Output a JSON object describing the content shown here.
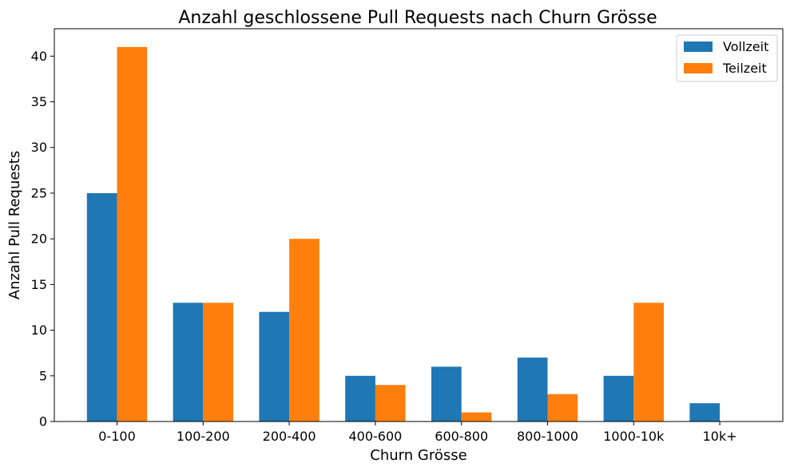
{
  "chart_data": {
    "type": "bar",
    "title": "Anzahl geschlossene Pull Requests nach Churn Grösse",
    "xlabel": "Churn Grösse",
    "ylabel": "Anzahl Pull Requests",
    "categories": [
      "0-100",
      "100-200",
      "200-400",
      "400-600",
      "600-800",
      "800-1000",
      "1000-10k",
      "10k+"
    ],
    "series": [
      {
        "name": "Vollzeit",
        "color": "#1f77b4",
        "values": [
          25,
          13,
          12,
          5,
          6,
          7,
          5,
          2
        ]
      },
      {
        "name": "Teilzeit",
        "color": "#ff7f0e",
        "values": [
          41,
          13,
          20,
          4,
          1,
          3,
          13,
          0
        ]
      }
    ],
    "ylim": [
      0,
      43
    ],
    "yticks": [
      0,
      5,
      10,
      15,
      20,
      25,
      30,
      35,
      40
    ],
    "grid": false,
    "legend_position": "top-right"
  }
}
